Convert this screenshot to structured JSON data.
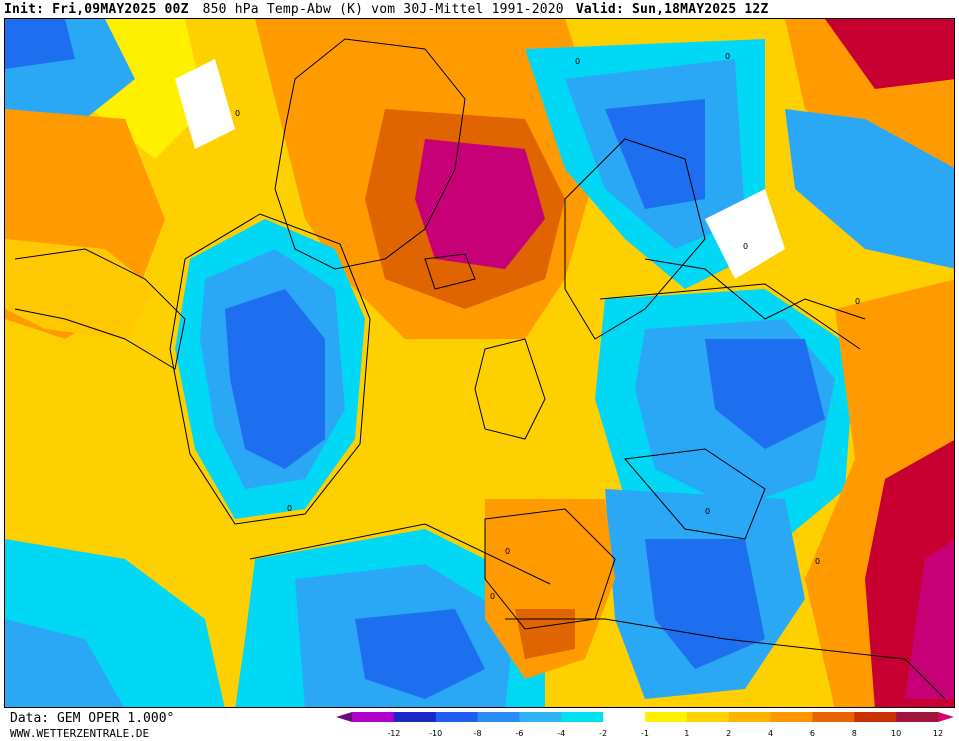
{
  "header": {
    "init": "Init: Fri,09MAY2025 00Z",
    "parameter": "850 hPa Temp-Abw (K) vom 30J-Mittel 1991-2020",
    "valid": "Valid: Sun,18MAY2025 12Z"
  },
  "footer": {
    "source": "Data: GEM OPER 1.000°",
    "website": "WWW.WETTERZENTRALE.DE"
  },
  "legend": {
    "colors": [
      "#6b0a7a",
      "#b000c8",
      "#1a28c8",
      "#1e5ef0",
      "#2a8cf5",
      "#2fb4f5",
      "#00e0f0",
      "#ffffff",
      "#fff000",
      "#ffd200",
      "#ffb400",
      "#ff9600",
      "#e86400",
      "#c83200",
      "#a0143c",
      "#d4006e"
    ],
    "ticks": [
      "-12",
      "-10",
      "-8",
      "-6",
      "-4",
      "-2",
      "-1",
      "1",
      "2",
      "4",
      "6",
      "8",
      "10",
      "12"
    ]
  },
  "map": {
    "anomaly_colors": {
      "strong_warm": "#c80078",
      "warm_3": "#e06400",
      "warm_2": "#ff9b00",
      "warm_1": "#ffc800",
      "neutral_warm": "#ffef00",
      "neutral": "#ffffff",
      "cold_1": "#00d8f5",
      "cold_2": "#2aa8f5",
      "cold_3": "#1e6ef0",
      "cold_4": "#1e3cdc"
    },
    "contour_labels": [
      "0",
      "0",
      "0",
      "0",
      "0",
      "0",
      "0",
      "0",
      "0",
      "0",
      "0"
    ]
  }
}
